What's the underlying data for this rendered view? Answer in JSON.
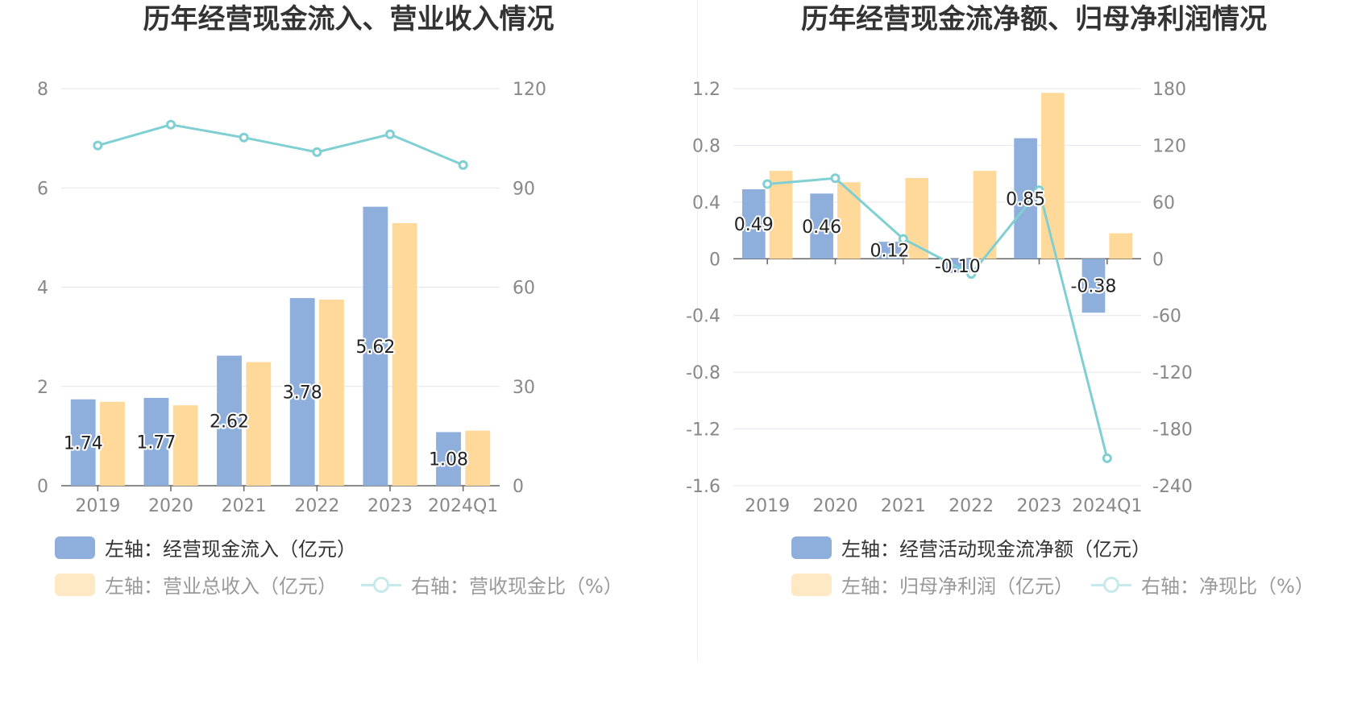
{
  "chart_data": [
    {
      "type": "bar",
      "title": "历年经营现金流入、营业收入情况",
      "categories": [
        "2019",
        "2020",
        "2021",
        "2022",
        "2023",
        "2024Q1"
      ],
      "left_axis": {
        "ticks": [
          "0",
          "2",
          "4",
          "6",
          "8"
        ],
        "ylim": [
          0,
          8
        ]
      },
      "right_axis": {
        "ticks": [
          "0",
          "30",
          "60",
          "90",
          "120"
        ],
        "ylim": [
          0,
          120
        ]
      },
      "series": [
        {
          "name": "左轴：经营现金流入（亿元）",
          "type": "bar",
          "axis": "left",
          "color": "#8eaedb",
          "values": [
            1.74,
            1.77,
            2.62,
            3.78,
            5.62,
            1.08
          ],
          "labels": [
            "1.74",
            "1.77",
            "2.62",
            "3.78",
            "5.62",
            "1.08"
          ]
        },
        {
          "name": "左轴：营业总收入（亿元）",
          "type": "bar",
          "axis": "left",
          "color": "#ffd99a",
          "values": [
            1.69,
            1.62,
            2.49,
            3.75,
            5.29,
            1.11
          ]
        },
        {
          "name": "右轴：营收现金比（%）",
          "type": "line",
          "axis": "right",
          "color": "#7fcfd3",
          "values": [
            102.8,
            109.1,
            105.2,
            100.8,
            106.2,
            96.9
          ]
        }
      ],
      "legend_muted": [
        false,
        true,
        true
      ]
    },
    {
      "type": "bar",
      "title": "历年经营现金流净额、归母净利润情况",
      "categories": [
        "2019",
        "2020",
        "2021",
        "2022",
        "2023",
        "2024Q1"
      ],
      "left_axis": {
        "ticks": [
          "-1.6",
          "-1.2",
          "-0.8",
          "-0.4",
          "0",
          "0.4",
          "0.8",
          "1.2"
        ],
        "ylim": [
          -1.6,
          1.2
        ]
      },
      "right_axis": {
        "ticks": [
          "-240",
          "-180",
          "-120",
          "-60",
          "0",
          "60",
          "120",
          "180"
        ],
        "ylim": [
          -240,
          180
        ]
      },
      "series": [
        {
          "name": "左轴：经营活动现金流净额（亿元）",
          "type": "bar",
          "axis": "left",
          "color": "#8eaedb",
          "values": [
            0.49,
            0.46,
            0.12,
            -0.1,
            0.85,
            -0.38
          ],
          "labels": [
            "0.49",
            "0.46",
            "0.12",
            "-0.10",
            "0.85",
            "-0.38"
          ]
        },
        {
          "name": "左轴：归母净利润（亿元）",
          "type": "bar",
          "axis": "left",
          "color": "#ffd99a",
          "values": [
            0.62,
            0.54,
            0.57,
            0.62,
            1.17,
            0.18
          ]
        },
        {
          "name": "右轴：净现比（%）",
          "type": "line",
          "axis": "right",
          "color": "#7fcfd3",
          "values": [
            79.0,
            85.2,
            21.0,
            -16.1,
            72.6,
            -210.9
          ]
        }
      ],
      "legend_muted": [
        false,
        true,
        true
      ]
    }
  ]
}
